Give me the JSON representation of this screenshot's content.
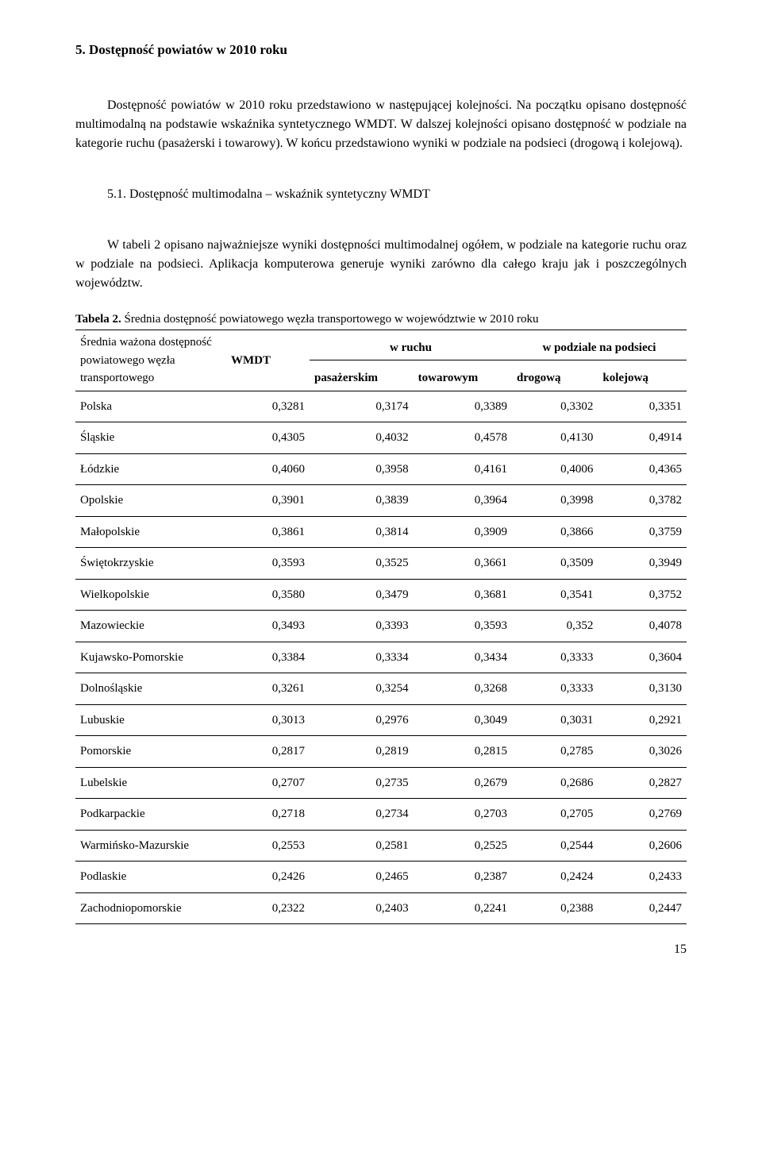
{
  "heading": "5.  Dostępność powiatów w 2010 roku",
  "para1": "Dostępność powiatów w 2010 roku przedstawiono w następującej kolejności. Na początku opisano dostępność multimodalną na podstawie wskaźnika syntetycznego WMDT. W dalszej kolejności opisano dostępność w podziale na kategorie ruchu (pasażerski i towarowy). W końcu przedstawiono wyniki w podziale na podsieci (drogową i kolejową).",
  "subheading": "5.1. Dostępność multimodalna – wskaźnik syntetyczny WMDT",
  "para2": "W tabeli 2 opisano najważniejsze wyniki dostępności multimodalnej ogółem, w podziale na kategorie ruchu oraz w podziale na podsieci. Aplikacja komputerowa generuje wyniki zarówno dla całego kraju jak i poszczególnych województw.",
  "caption": "Tabela 2. Średnia dostępność powiatowego węzła transportowego w województwie w 2010 roku",
  "header": {
    "label": "Średnia ważona dostępność powiatowego węzła transportowego",
    "wmdt": "WMDT",
    "ruchu": "w ruchu",
    "podsieci": "w podziale na podsieci",
    "pasazerskim": "pasażerskim",
    "towarowym": "towarowym",
    "drogowa": "drogową",
    "kolejowa": "kolejową"
  },
  "rows": [
    {
      "name": "Polska",
      "c1": "0,3281",
      "c2": "0,3174",
      "c3": "0,3389",
      "c4": "0,3302",
      "c5": "0,3351"
    },
    {
      "name": "Śląskie",
      "c1": "0,4305",
      "c2": "0,4032",
      "c3": "0,4578",
      "c4": "0,4130",
      "c5": "0,4914"
    },
    {
      "name": "Łódzkie",
      "c1": "0,4060",
      "c2": "0,3958",
      "c3": "0,4161",
      "c4": "0,4006",
      "c5": "0,4365"
    },
    {
      "name": "Opolskie",
      "c1": "0,3901",
      "c2": "0,3839",
      "c3": "0,3964",
      "c4": "0,3998",
      "c5": "0,3782"
    },
    {
      "name": "Małopolskie",
      "c1": "0,3861",
      "c2": "0,3814",
      "c3": "0,3909",
      "c4": "0,3866",
      "c5": "0,3759"
    },
    {
      "name": "Świętokrzyskie",
      "c1": "0,3593",
      "c2": "0,3525",
      "c3": "0,3661",
      "c4": "0,3509",
      "c5": "0,3949"
    },
    {
      "name": "Wielkopolskie",
      "c1": "0,3580",
      "c2": "0,3479",
      "c3": "0,3681",
      "c4": "0,3541",
      "c5": "0,3752"
    },
    {
      "name": "Mazowieckie",
      "c1": "0,3493",
      "c2": "0,3393",
      "c3": "0,3593",
      "c4": "0,352",
      "c5": "0,4078"
    },
    {
      "name": "Kujawsko-Pomorskie",
      "c1": "0,3384",
      "c2": "0,3334",
      "c3": "0,3434",
      "c4": "0,3333",
      "c5": "0,3604"
    },
    {
      "name": "Dolnośląskie",
      "c1": "0,3261",
      "c2": "0,3254",
      "c3": "0,3268",
      "c4": "0,3333",
      "c5": "0,3130"
    },
    {
      "name": "Lubuskie",
      "c1": "0,3013",
      "c2": "0,2976",
      "c3": "0,3049",
      "c4": "0,3031",
      "c5": "0,2921"
    },
    {
      "name": "Pomorskie",
      "c1": "0,2817",
      "c2": "0,2819",
      "c3": "0,2815",
      "c4": "0,2785",
      "c5": "0,3026"
    },
    {
      "name": "Lubelskie",
      "c1": "0,2707",
      "c2": "0,2735",
      "c3": "0,2679",
      "c4": "0,2686",
      "c5": "0,2827"
    },
    {
      "name": "Podkarpackie",
      "c1": "0,2718",
      "c2": "0,2734",
      "c3": "0,2703",
      "c4": "0,2705",
      "c5": "0,2769"
    },
    {
      "name": "Warmińsko-Mazurskie",
      "c1": "0,2553",
      "c2": "0,2581",
      "c3": "0,2525",
      "c4": "0,2544",
      "c5": "0,2606"
    },
    {
      "name": "Podlaskie",
      "c1": "0,2426",
      "c2": "0,2465",
      "c3": "0,2387",
      "c4": "0,2424",
      "c5": "0,2433"
    },
    {
      "name": "Zachodniopomorskie",
      "c1": "0,2322",
      "c2": "0,2403",
      "c3": "0,2241",
      "c4": "0,2388",
      "c5": "0,2447"
    }
  ],
  "pagenum": "15"
}
